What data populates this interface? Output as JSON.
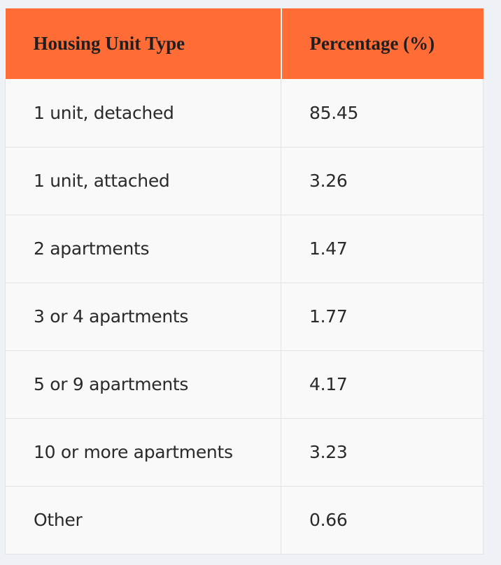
{
  "table": {
    "headers": [
      "Housing Unit Type",
      "Percentage (%)"
    ],
    "rows": [
      [
        "1 unit, detached",
        "85.45"
      ],
      [
        "1 unit, attached",
        "3.26"
      ],
      [
        "2 apartments",
        "1.47"
      ],
      [
        "3 or 4 apartments",
        "1.77"
      ],
      [
        "5 or 9 apartments",
        "4.17"
      ],
      [
        "10 or more apartments",
        "3.23"
      ],
      [
        "Other",
        "0.66"
      ]
    ]
  },
  "colors": {
    "header_bg": "#ff6c35",
    "page_bg": "#eef2f6",
    "cell_bg": "#f9f9f9"
  }
}
